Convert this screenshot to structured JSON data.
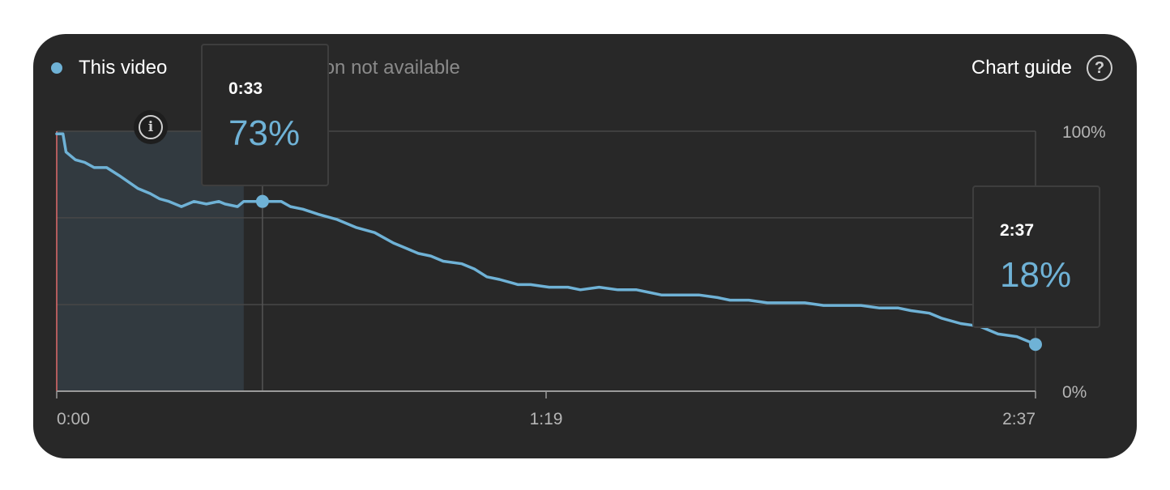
{
  "legend": {
    "series_label": "This video",
    "comparison_label": "etention not available",
    "series_color": "#6fb2d6"
  },
  "header": {
    "chart_guide_label": "Chart guide",
    "help_icon": "?"
  },
  "info_icon": "i",
  "chart_data": {
    "type": "line",
    "title": "",
    "xlabel": "",
    "ylabel": "",
    "x_ticks": [
      "0:00",
      "1:19",
      "2:37"
    ],
    "y_ticks": [
      "100%",
      "0%"
    ],
    "xlim": [
      0,
      157
    ],
    "ylim": [
      0,
      100
    ],
    "grid": true,
    "highlighted_range_seconds": [
      0,
      30
    ],
    "series": [
      {
        "name": "This video",
        "color": "#6fb2d6",
        "x": [
          0,
          1,
          1.5,
          3,
          4.5,
          6,
          8,
          10,
          13,
          15,
          16.5,
          18,
          20,
          22,
          24,
          26,
          27,
          29,
          30,
          31,
          33,
          36,
          37.5,
          39.5,
          42,
          45,
          48,
          51,
          54,
          56,
          58,
          60,
          62,
          65,
          67,
          69,
          71,
          74,
          76,
          79,
          82,
          84,
          87,
          90,
          93,
          95,
          97,
          100,
          103,
          106,
          108,
          111,
          114,
          117,
          120,
          123,
          126,
          129,
          132,
          135,
          137,
          140,
          142,
          145,
          148,
          151,
          154,
          157
        ],
        "values": [
          99,
          99,
          92,
          89,
          88,
          86,
          86,
          83,
          78,
          76,
          74,
          73,
          71,
          73,
          72,
          73,
          72,
          71,
          73,
          73,
          73,
          73,
          71,
          70,
          68,
          66,
          63,
          61,
          57,
          55,
          53,
          52,
          50,
          49,
          47,
          44,
          43,
          41,
          41,
          40,
          40,
          39,
          40,
          39,
          39,
          38,
          37,
          37,
          37,
          36,
          35,
          35,
          34,
          34,
          34,
          33,
          33,
          33,
          32,
          32,
          31,
          30,
          28,
          26,
          25,
          22,
          21,
          18
        ]
      }
    ],
    "tooltips": [
      {
        "time": "0:33",
        "value_label": "73%",
        "x": 33,
        "y": 73
      },
      {
        "time": "2:37",
        "value_label": "18%",
        "x": 157,
        "y": 18
      }
    ]
  }
}
